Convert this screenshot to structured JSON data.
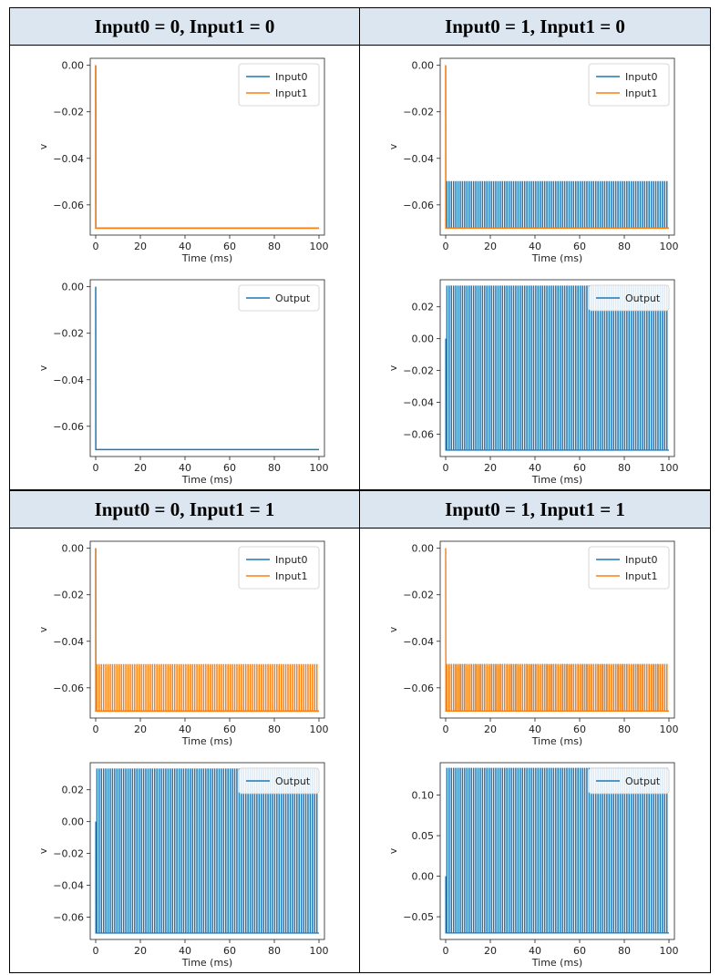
{
  "panels": [
    {
      "id": "p00",
      "title": "Input0 = 0, Input1 = 0",
      "plots": [
        {
          "ylabel": "v",
          "xlabel": "Time (ms)",
          "xlim": [
            0,
            100
          ],
          "ylim": [
            -0.073,
            0.003
          ],
          "yticks": [
            "0.00",
            "−0.02",
            "−0.04",
            "−0.06"
          ],
          "ytick_values": [
            0,
            -0.02,
            -0.04,
            -0.06
          ],
          "xticks": [
            "0",
            "20",
            "40",
            "60",
            "80",
            "100"
          ],
          "legend": [
            "Input0",
            "Input1"
          ],
          "series": [
            {
              "name": "Input0",
              "color": "#1f77b4",
              "spiking": false
            },
            {
              "name": "Input1",
              "color": "#ff7f0e",
              "spiking": false
            }
          ]
        },
        {
          "ylabel": "v",
          "xlabel": "Time (ms)",
          "xlim": [
            0,
            100
          ],
          "ylim": [
            -0.073,
            0.003
          ],
          "yticks": [
            "0.00",
            "−0.02",
            "−0.04",
            "−0.06"
          ],
          "ytick_values": [
            0,
            -0.02,
            -0.04,
            -0.06
          ],
          "xticks": [
            "0",
            "20",
            "40",
            "60",
            "80",
            "100"
          ],
          "legend": [
            "Output"
          ],
          "series": [
            {
              "name": "Output",
              "color": "#1f77b4",
              "spiking": false
            }
          ]
        }
      ]
    },
    {
      "id": "p10",
      "title": "Input0 = 1, Input1 = 0",
      "plots": [
        {
          "ylabel": "v",
          "xlabel": "Time (ms)",
          "xlim": [
            0,
            100
          ],
          "ylim": [
            -0.073,
            0.003
          ],
          "yticks": [
            "0.00",
            "−0.02",
            "−0.04",
            "−0.06"
          ],
          "ytick_values": [
            0,
            -0.02,
            -0.04,
            -0.06
          ],
          "xticks": [
            "0",
            "20",
            "40",
            "60",
            "80",
            "100"
          ],
          "legend": [
            "Input0",
            "Input1"
          ],
          "series": [
            {
              "name": "Input0",
              "color": "#1f77b4",
              "spiking": true,
              "peak": -0.05
            },
            {
              "name": "Input1",
              "color": "#ff7f0e",
              "spiking": false
            }
          ]
        },
        {
          "ylabel": "v",
          "xlabel": "Time (ms)",
          "xlim": [
            0,
            100
          ],
          "ylim": [
            -0.074,
            0.037
          ],
          "yticks": [
            "0.02",
            "0.00",
            "−0.02",
            "−0.04",
            "−0.06"
          ],
          "ytick_values": [
            0.02,
            0,
            -0.02,
            -0.04,
            -0.06
          ],
          "xticks": [
            "0",
            "20",
            "40",
            "60",
            "80",
            "100"
          ],
          "legend": [
            "Output"
          ],
          "series": [
            {
              "name": "Output",
              "color": "#1f77b4",
              "spiking": true,
              "peak": 0.033
            }
          ]
        }
      ]
    },
    {
      "id": "p01",
      "title": "Input0 = 0, Input1 = 1",
      "plots": [
        {
          "ylabel": "v",
          "xlabel": "Time (ms)",
          "xlim": [
            0,
            100
          ],
          "ylim": [
            -0.073,
            0.003
          ],
          "yticks": [
            "0.00",
            "−0.02",
            "−0.04",
            "−0.06"
          ],
          "ytick_values": [
            0,
            -0.02,
            -0.04,
            -0.06
          ],
          "xticks": [
            "0",
            "20",
            "40",
            "60",
            "80",
            "100"
          ],
          "legend": [
            "Input0",
            "Input1"
          ],
          "series": [
            {
              "name": "Input0",
              "color": "#1f77b4",
              "spiking": false
            },
            {
              "name": "Input1",
              "color": "#ff7f0e",
              "spiking": true,
              "peak": -0.05
            }
          ]
        },
        {
          "ylabel": "v",
          "xlabel": "Time (ms)",
          "xlim": [
            0,
            100
          ],
          "ylim": [
            -0.074,
            0.037
          ],
          "yticks": [
            "0.02",
            "0.00",
            "−0.02",
            "−0.04",
            "−0.06"
          ],
          "ytick_values": [
            0.02,
            0,
            -0.02,
            -0.04,
            -0.06
          ],
          "xticks": [
            "0",
            "20",
            "40",
            "60",
            "80",
            "100"
          ],
          "legend": [
            "Output"
          ],
          "series": [
            {
              "name": "Output",
              "color": "#1f77b4",
              "spiking": true,
              "peak": 0.033
            }
          ]
        }
      ]
    },
    {
      "id": "p11",
      "title": "Input0 = 1, Input1 = 1",
      "plots": [
        {
          "ylabel": "v",
          "xlabel": "Time (ms)",
          "xlim": [
            0,
            100
          ],
          "ylim": [
            -0.073,
            0.003
          ],
          "yticks": [
            "0.00",
            "−0.02",
            "−0.04",
            "−0.06"
          ],
          "ytick_values": [
            0,
            -0.02,
            -0.04,
            -0.06
          ],
          "xticks": [
            "0",
            "20",
            "40",
            "60",
            "80",
            "100"
          ],
          "legend": [
            "Input0",
            "Input1"
          ],
          "series": [
            {
              "name": "Input0",
              "color": "#1f77b4",
              "spiking": true,
              "peak": -0.05
            },
            {
              "name": "Input1",
              "color": "#ff7f0e",
              "spiking": true,
              "peak": -0.05
            }
          ]
        },
        {
          "ylabel": "v",
          "xlabel": "Time (ms)",
          "xlim": [
            0,
            100
          ],
          "ylim": [
            -0.078,
            0.14
          ],
          "yticks": [
            "0.10",
            "0.05",
            "0.00",
            "−0.05"
          ],
          "ytick_values": [
            0.1,
            0.05,
            0,
            -0.05
          ],
          "xticks": [
            "0",
            "20",
            "40",
            "60",
            "80",
            "100"
          ],
          "legend": [
            "Output"
          ],
          "series": [
            {
              "name": "Output",
              "color": "#1f77b4",
              "spiking": true,
              "peak": 0.133
            }
          ]
        }
      ]
    }
  ],
  "chart_data": [
    {
      "type": "line",
      "title": "Input0 = 0, Input1 = 0",
      "xlabel": "Time (ms)",
      "ylabel": "v",
      "xlim": [
        0,
        100
      ],
      "series": [
        {
          "name": "Input0",
          "rest": -0.07,
          "initial": 0.0,
          "spiking": false
        },
        {
          "name": "Input1",
          "rest": -0.07,
          "initial": 0.0,
          "spiking": false
        },
        {
          "name": "Output",
          "rest": -0.07,
          "initial": 0.0,
          "spiking": false
        }
      ]
    },
    {
      "type": "line",
      "title": "Input0 = 1, Input1 = 0",
      "xlabel": "Time (ms)",
      "ylabel": "v",
      "xlim": [
        0,
        100
      ],
      "series": [
        {
          "name": "Input0",
          "rest": -0.07,
          "initial": 0.0,
          "spiking": true,
          "peak": -0.05
        },
        {
          "name": "Input1",
          "rest": -0.07,
          "initial": 0.0,
          "spiking": false
        },
        {
          "name": "Output",
          "rest": -0.07,
          "initial": 0.0,
          "spiking": true,
          "peak": 0.033
        }
      ]
    },
    {
      "type": "line",
      "title": "Input0 = 0, Input1 = 1",
      "xlabel": "Time (ms)",
      "ylabel": "v",
      "xlim": [
        0,
        100
      ],
      "series": [
        {
          "name": "Input0",
          "rest": -0.07,
          "initial": 0.0,
          "spiking": false
        },
        {
          "name": "Input1",
          "rest": -0.07,
          "initial": 0.0,
          "spiking": true,
          "peak": -0.05
        },
        {
          "name": "Output",
          "rest": -0.07,
          "initial": 0.0,
          "spiking": true,
          "peak": 0.033
        }
      ]
    },
    {
      "type": "line",
      "title": "Input0 = 1, Input1 = 1",
      "xlabel": "Time (ms)",
      "ylabel": "v",
      "xlim": [
        0,
        100
      ],
      "series": [
        {
          "name": "Input0",
          "rest": -0.07,
          "initial": 0.0,
          "spiking": true,
          "peak": -0.05
        },
        {
          "name": "Input1",
          "rest": -0.07,
          "initial": 0.0,
          "spiking": true,
          "peak": -0.05
        },
        {
          "name": "Output",
          "rest": -0.07,
          "initial": 0.0,
          "spiking": true,
          "peak": 0.133
        }
      ]
    }
  ]
}
